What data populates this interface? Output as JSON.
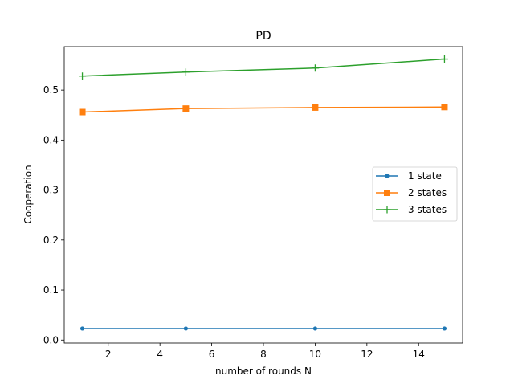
{
  "chart_data": {
    "type": "line",
    "title": "PD",
    "xlabel": "number of rounds N",
    "ylabel": "Cooperation",
    "x": [
      1,
      5,
      10,
      15
    ],
    "xlim": [
      0.3,
      15.7
    ],
    "ylim": [
      -0.006,
      0.587
    ],
    "xticks": [
      2,
      4,
      6,
      8,
      10,
      12,
      14
    ],
    "yticks": [
      0.0,
      0.1,
      0.2,
      0.3,
      0.4,
      0.5
    ],
    "grid": false,
    "legend_position": "center-right",
    "series": [
      {
        "name": "1 state",
        "values": [
          0.023,
          0.023,
          0.023,
          0.023
        ],
        "color": "#1f77b4",
        "marker": "dot"
      },
      {
        "name": "2 states",
        "values": [
          0.456,
          0.463,
          0.465,
          0.466
        ],
        "color": "#ff7f0e",
        "marker": "square"
      },
      {
        "name": "3 states",
        "values": [
          0.528,
          0.536,
          0.544,
          0.562
        ],
        "color": "#2ca02c",
        "marker": "plus"
      }
    ]
  }
}
